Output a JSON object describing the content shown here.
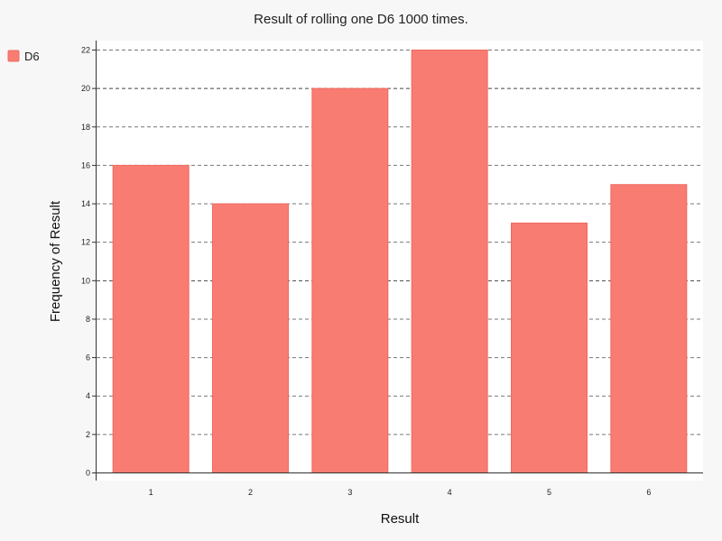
{
  "chart_data": {
    "type": "bar",
    "title": "Result of rolling one D6 1000 times.",
    "xlabel": "Result",
    "ylabel": "Frequency of Result",
    "categories": [
      "1",
      "2",
      "3",
      "4",
      "5",
      "6"
    ],
    "series": [
      {
        "name": "D6",
        "values": [
          16,
          14,
          20,
          22,
          13,
          15
        ]
      }
    ],
    "ylim": [
      0,
      22
    ],
    "yticks": [
      "0",
      "2",
      "4",
      "6",
      "8",
      "10",
      "12",
      "14",
      "16",
      "18",
      "20",
      "22"
    ],
    "grid": true,
    "legend_position": "top-left",
    "colors": {
      "bar_fill": "#f87c71",
      "bar_stroke": "#ef6a60",
      "plot_background": "#ffffff",
      "page_background": "#f7f7f7",
      "grid": "#777777",
      "axis": "#333333"
    }
  }
}
